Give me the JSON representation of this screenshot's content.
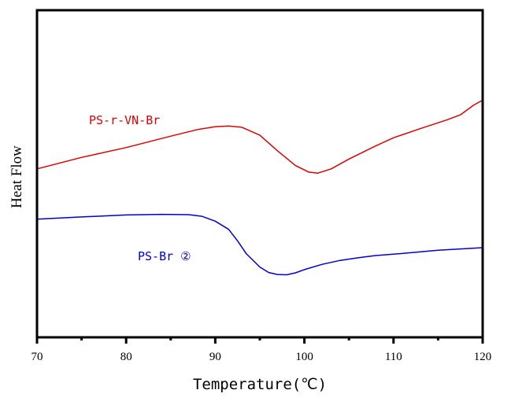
{
  "chart_data": {
    "type": "line",
    "title": "",
    "xlabel": "Temperature(℃)",
    "ylabel": "Heat Flow",
    "xlim": [
      70,
      120
    ],
    "ylim": [
      0,
      100
    ],
    "x_ticks": [
      70,
      80,
      90,
      100,
      110,
      120
    ],
    "x_tick_labels": [
      "70",
      "80",
      "90",
      "100",
      "110",
      "120"
    ],
    "y_ticks_shown": false,
    "grid": false,
    "series": [
      {
        "name": "PS-r-VN-Br",
        "label": "PS-r-VN-Br",
        "color": "#e00000",
        "x": [
          70,
          75,
          80,
          85,
          88,
          90,
          91.5,
          93,
          95,
          97,
          99,
          100.5,
          101.5,
          103,
          105,
          108,
          110,
          113,
          116,
          117.5,
          119,
          120
        ],
        "y": [
          51.5,
          55,
          58,
          61.5,
          63.5,
          64.4,
          64.6,
          64.2,
          61.8,
          57,
          52.5,
          50.5,
          50.2,
          51.5,
          54.5,
          58.5,
          61,
          63.8,
          66.5,
          68,
          71,
          72.5
        ]
      },
      {
        "name": "PS-Br ②",
        "label": "PS-Br ②",
        "color": "#0000d0",
        "x": [
          70,
          75,
          80,
          84,
          87,
          88.5,
          90,
          91.5,
          92.5,
          93.5,
          95,
          96,
          97,
          98,
          99,
          100,
          102,
          104,
          106,
          108,
          110,
          115,
          120
        ],
        "y": [
          36.1,
          36.8,
          37.4,
          37.6,
          37.5,
          37.0,
          35.5,
          33.0,
          29.5,
          25.5,
          21.5,
          19.8,
          19.2,
          19.1,
          19.7,
          20.7,
          22.3,
          23.5,
          24.3,
          25.0,
          25.4,
          26.6,
          27.4
        ]
      }
    ]
  },
  "colors": {
    "red_series": "#e00000",
    "blue_series": "#0000d0",
    "axis": "#000000"
  }
}
